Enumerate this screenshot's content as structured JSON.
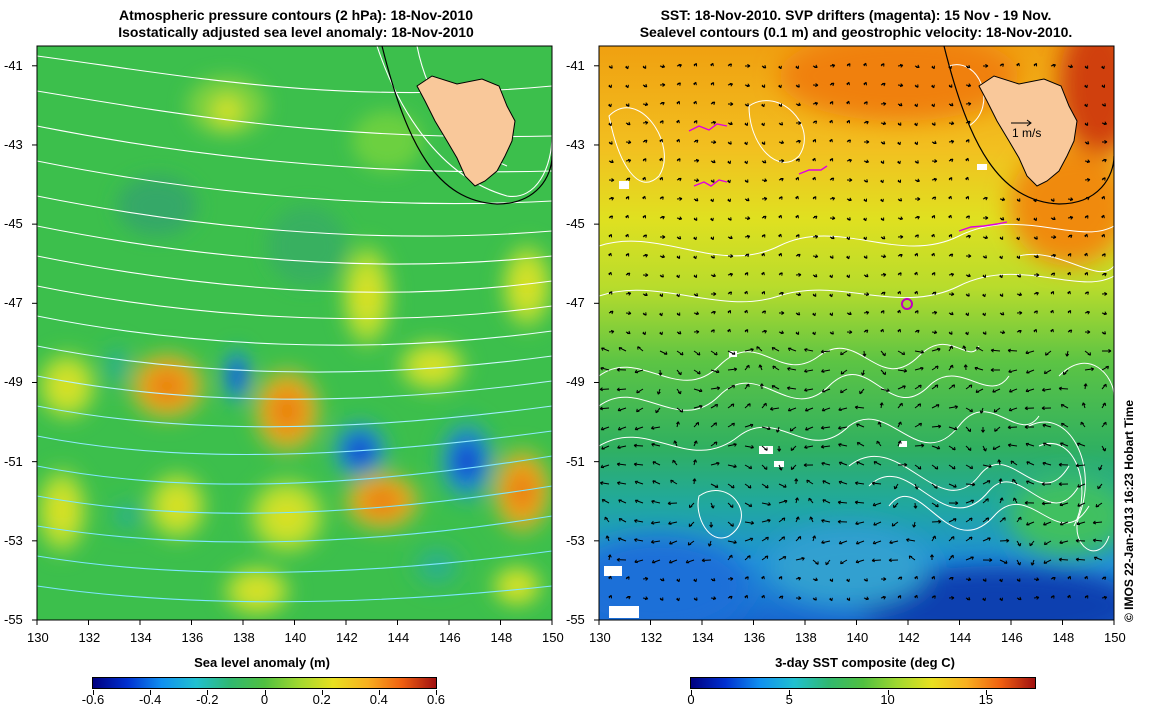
{
  "left_panel": {
    "title_line1": "Atmospheric pressure contours (2 hPa): 18-Nov-2010",
    "title_line2": "Isostatically adjusted sea level anomaly: 18-Nov-2010",
    "colorbar_title": "Sea level anomaly (m)",
    "colorbar_ticks": [
      "-0.6",
      "-0.4",
      "-0.2",
      "0",
      "0.2",
      "0.4",
      "0.6"
    ],
    "colorbar_range": [
      -0.6,
      0.6
    ]
  },
  "right_panel": {
    "title_line1": "SST: 18-Nov-2010. SVP drifters (magenta): 15 Nov - 19 Nov.",
    "title_line2": "Sealevel contours (0.1 m) and geostrophic velocity: 18-Nov-2010.",
    "colorbar_title": "3-day SST composite (deg C)",
    "colorbar_ticks": [
      "0",
      "5",
      "10",
      "15"
    ],
    "colorbar_range": [
      0,
      17.5
    ],
    "velocity_scale_label": "1 m/s"
  },
  "axes": {
    "lon_ticks": [
      "130",
      "132",
      "134",
      "136",
      "138",
      "140",
      "142",
      "144",
      "146",
      "148",
      "150"
    ],
    "lat_ticks": [
      "-41",
      "-43",
      "-45",
      "-47",
      "-49",
      "-51",
      "-53",
      "-55"
    ],
    "lon_range": [
      130,
      150
    ],
    "lat_range": [
      -55,
      -40.5
    ]
  },
  "credit": "© IMOS 22-Jan-2013 16:23 Hobart Time",
  "colors": {
    "land": "#f9c89a",
    "contour_white": "#ffffff",
    "contour_cyan": "#7fe6ff",
    "drifter": "#e000e0"
  }
}
